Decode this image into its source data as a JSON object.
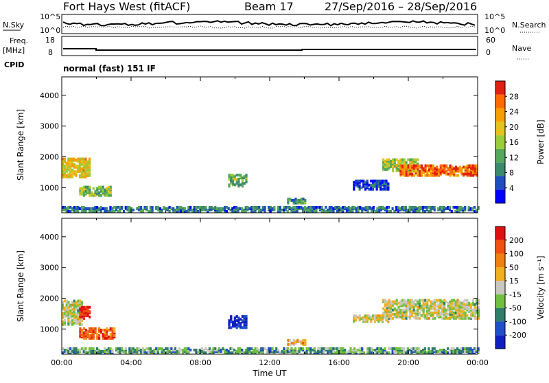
{
  "header": {
    "radar": "Fort Hays West (fitACF)",
    "beam": "Beam 17",
    "dates": "27/Sep/2016 – 28/Sep/2016"
  },
  "strips": {
    "nsky_label": "N.Sky",
    "nsky_ticks": [
      "10^5",
      "10^0"
    ],
    "nsearch_label": "N.Search",
    "nsearch_ticks": [
      "10^5",
      "10^0"
    ],
    "freq_label": "Freq.",
    "freq_unit": "[MHz]",
    "freq_ticks": [
      "18",
      "8"
    ],
    "nave_label": "Nave",
    "nave_ticks": [
      "60",
      "0"
    ],
    "cpid_label": "CPID",
    "cpid_value": "normal (fast) 151 IF"
  },
  "chart_data": [
    {
      "type": "heatmap",
      "name": "power-panel",
      "ylabel": "Slant Range [km]",
      "yticks": [
        "4000",
        "3000",
        "2000",
        "1000"
      ],
      "ylim": [
        180,
        4600
      ],
      "xlim": [
        0,
        24
      ],
      "colorbar_label": "Power [dB]",
      "colorbar_ticks": [
        "28",
        "24",
        "20",
        "16",
        "12",
        "8",
        "4"
      ],
      "colors": [
        "#0000ff",
        "#1f4fbf",
        "#3b8a6e",
        "#56a85a",
        "#9bcc3a",
        "#e6c21c",
        "#f5a000",
        "#ff6a00",
        "#e02010"
      ],
      "regions": [
        {
          "t": [
            0.0,
            1.6
          ],
          "r": [
            1300,
            1900
          ],
          "level": 0.62
        },
        {
          "t": [
            1.0,
            2.8
          ],
          "r": [
            700,
            1000
          ],
          "level": 0.45
        },
        {
          "t": [
            9.6,
            10.6
          ],
          "r": [
            1000,
            1400
          ],
          "level": 0.4
        },
        {
          "t": [
            13.0,
            14.0
          ],
          "r": [
            450,
            600
          ],
          "level": 0.35
        },
        {
          "t": [
            16.8,
            18.8
          ],
          "r": [
            900,
            1200
          ],
          "level": 0.15
        },
        {
          "t": [
            18.5,
            20.5
          ],
          "r": [
            1500,
            1900
          ],
          "level": 0.5
        },
        {
          "t": [
            19.5,
            24.0
          ],
          "r": [
            1350,
            1700
          ],
          "level": 0.82
        },
        {
          "t": [
            0.0,
            24.0
          ],
          "r": [
            180,
            350
          ],
          "level": 0.25
        }
      ]
    },
    {
      "type": "heatmap",
      "name": "velocity-panel",
      "ylabel": "Slant Range [km]",
      "yticks": [
        "4000",
        "3000",
        "2000",
        "1000"
      ],
      "ylim": [
        180,
        4600
      ],
      "xlim": [
        0,
        24
      ],
      "colorbar_label": "Velocity [m s⁻¹]",
      "colorbar_ticks": [
        "200",
        "100",
        "50",
        "15",
        "-15",
        "-50",
        "-100",
        "-200"
      ],
      "colors": [
        "#1020c0",
        "#2050c8",
        "#2f7e6c",
        "#6fc040",
        "#c8c8c0",
        "#f0b020",
        "#f08010",
        "#f05010",
        "#e01010"
      ],
      "xticks": [
        "00:00",
        "04:00",
        "08:00",
        "12:00",
        "16:00",
        "20:00",
        "00:00"
      ],
      "xlabel": "Time UT",
      "regions": [
        {
          "t": [
            0.0,
            1.2
          ],
          "r": [
            1100,
            1900
          ],
          "level": 0.5
        },
        {
          "t": [
            1.0,
            1.6
          ],
          "r": [
            1300,
            1700
          ],
          "level": 0.95
        },
        {
          "t": [
            1.0,
            3.0
          ],
          "r": [
            650,
            1000
          ],
          "level": 0.82
        },
        {
          "t": [
            9.6,
            10.6
          ],
          "r": [
            1000,
            1400
          ],
          "level": 0.05
        },
        {
          "t": [
            13.0,
            14.0
          ],
          "r": [
            450,
            600
          ],
          "level": 0.62
        },
        {
          "t": [
            16.8,
            18.8
          ],
          "r": [
            1200,
            1400
          ],
          "level": 0.5
        },
        {
          "t": [
            18.5,
            24.0
          ],
          "r": [
            1300,
            1900
          ],
          "level": 0.5
        },
        {
          "t": [
            0.0,
            24.0
          ],
          "r": [
            180,
            350
          ],
          "level": 0.35
        }
      ]
    }
  ]
}
